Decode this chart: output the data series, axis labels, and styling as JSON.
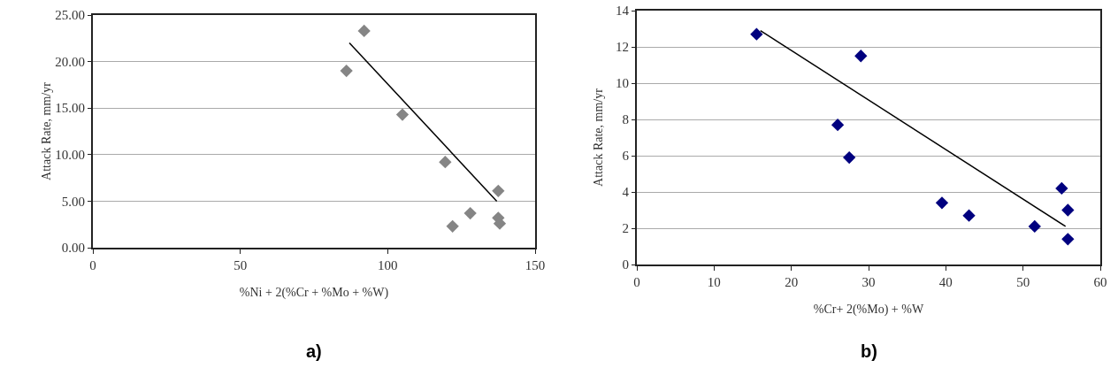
{
  "chart_data": [
    {
      "type": "scatter",
      "xlabel": "%Ni + 2(%Cr + %Mo + %W)",
      "ylabel": "Attack Rate, mm/yr",
      "annotations": [
        "a)"
      ],
      "marker": "diamond",
      "grid": "y",
      "xlim": [
        0,
        150
      ],
      "xticks": [
        0,
        50,
        100,
        150
      ],
      "ylim": [
        0,
        25
      ],
      "yticks": [
        {
          "value": 0,
          "label": "0.00"
        },
        {
          "value": 5,
          "label": "5.00"
        },
        {
          "value": 10,
          "label": "10.00"
        },
        {
          "value": 15,
          "label": "15.00"
        },
        {
          "value": 20,
          "label": "20.00"
        },
        {
          "value": 25,
          "label": "25.00"
        }
      ],
      "series": [
        {
          "type": "scatter",
          "color": "#858585",
          "x": [
            86,
            92,
            105,
            119.5,
            122,
            128,
            137.5,
            137.5,
            138
          ],
          "values": [
            19,
            23.3,
            14.3,
            9.2,
            2.3,
            3.7,
            6.1,
            3.2,
            2.6
          ]
        },
        {
          "type": "line",
          "color": "#000000",
          "marker": "none",
          "x": [
            87,
            137
          ],
          "values": [
            22,
            5
          ]
        }
      ]
    },
    {
      "type": "scatter",
      "xlabel": "%Cr+ 2(%Mo) + %W",
      "ylabel": "Attack Rate, mm/yr",
      "annotations": [
        "b)"
      ],
      "marker": "diamond",
      "grid": "y",
      "xlim": [
        0,
        60
      ],
      "xticks": [
        0,
        10,
        20,
        30,
        40,
        50,
        60
      ],
      "ylim": [
        0,
        14
      ],
      "yticks": [
        0,
        2,
        4,
        6,
        8,
        10,
        12,
        14
      ],
      "series": [
        {
          "type": "scatter",
          "color": "#00007f",
          "x": [
            15.5,
            26,
            27.5,
            29,
            39.5,
            43,
            51.5,
            55,
            55.8,
            55.8
          ],
          "values": [
            12.7,
            7.7,
            5.9,
            11.5,
            3.4,
            2.7,
            2.1,
            4.2,
            3.0,
            1.4
          ]
        },
        {
          "type": "line",
          "color": "#000000",
          "marker": "none",
          "x": [
            16,
            55.5
          ],
          "values": [
            12.9,
            2.1
          ]
        }
      ]
    }
  ]
}
